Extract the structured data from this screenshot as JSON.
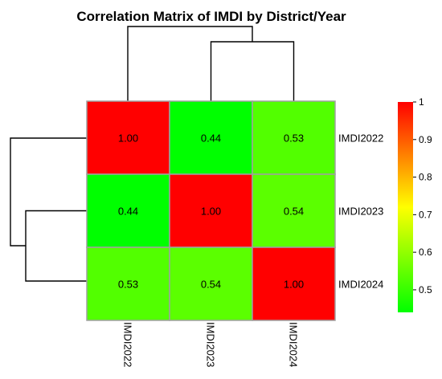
{
  "chart_data": {
    "type": "heatmap",
    "title": "Correlation Matrix of IMDI by District/Year",
    "rows": [
      "IMDI2022",
      "IMDI2023",
      "IMDI2024"
    ],
    "columns": [
      "IMDI2022",
      "IMDI2023",
      "IMDI2024"
    ],
    "values": [
      [
        1.0,
        0.44,
        0.53
      ],
      [
        0.44,
        1.0,
        0.54
      ],
      [
        0.53,
        0.54,
        1.0
      ]
    ],
    "value_labels": [
      [
        "1.00",
        "0.44",
        "0.53"
      ],
      [
        "0.44",
        "1.00",
        "0.54"
      ],
      [
        "0.53",
        "0.54",
        "1.00"
      ]
    ],
    "color_scale": {
      "min": 0.44,
      "max": 1,
      "low_color": "#00ff00",
      "mid_color": "#ffff00",
      "high_color": "#ff0000"
    },
    "colorbar_ticks": [
      "1",
      "0.9",
      "0.8",
      "0.7",
      "0.6",
      "0.5"
    ],
    "colorbar_tick_values": [
      1,
      0.9,
      0.8,
      0.7,
      0.6,
      0.5
    ],
    "grid_color": "#a0a0a0",
    "dendrogram": {
      "columns": "IMDI2022 joins (IMDI2023, IMDI2024)",
      "rows": "IMDI2022 joins (IMDI2023, IMDI2024)"
    }
  }
}
